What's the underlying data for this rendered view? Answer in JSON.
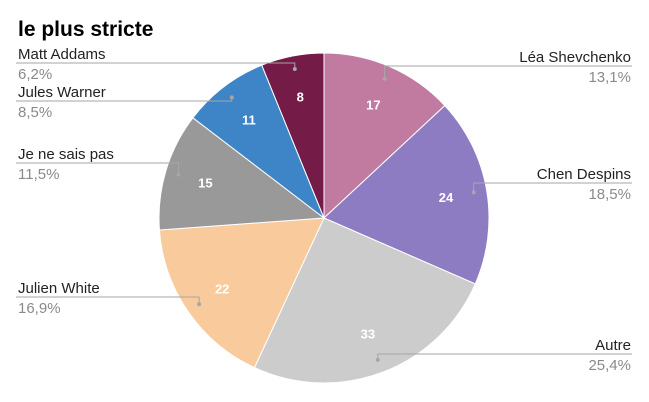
{
  "chart_data": {
    "type": "pie",
    "title": "le plus stricte",
    "legend": "none",
    "start_angle_deg": 0,
    "direction": "clockwise",
    "slices": [
      {
        "label": "Léa Shevchenko",
        "value": 17,
        "percent": "13,1%",
        "color": "#c27ba0",
        "label_side": "right"
      },
      {
        "label": "Chen Despins",
        "value": 24,
        "percent": "18,5%",
        "color": "#8e7cc3",
        "label_side": "right"
      },
      {
        "label": "Autre",
        "value": 33,
        "percent": "25,4%",
        "color": "#cccccc",
        "label_side": "right"
      },
      {
        "label": "Julien White",
        "value": 22,
        "percent": "16,9%",
        "color": "#f9cb9c",
        "label_side": "left"
      },
      {
        "label": "Je ne sais pas",
        "value": 15,
        "percent": "11,5%",
        "color": "#999999",
        "label_side": "left"
      },
      {
        "label": "Jules Warner",
        "value": 11,
        "percent": "8,5%",
        "color": "#3d85c6",
        "label_side": "left"
      },
      {
        "label": "Matt Addams",
        "value": 8,
        "percent": "6,2%",
        "color": "#741b47",
        "label_side": "left"
      }
    ]
  }
}
